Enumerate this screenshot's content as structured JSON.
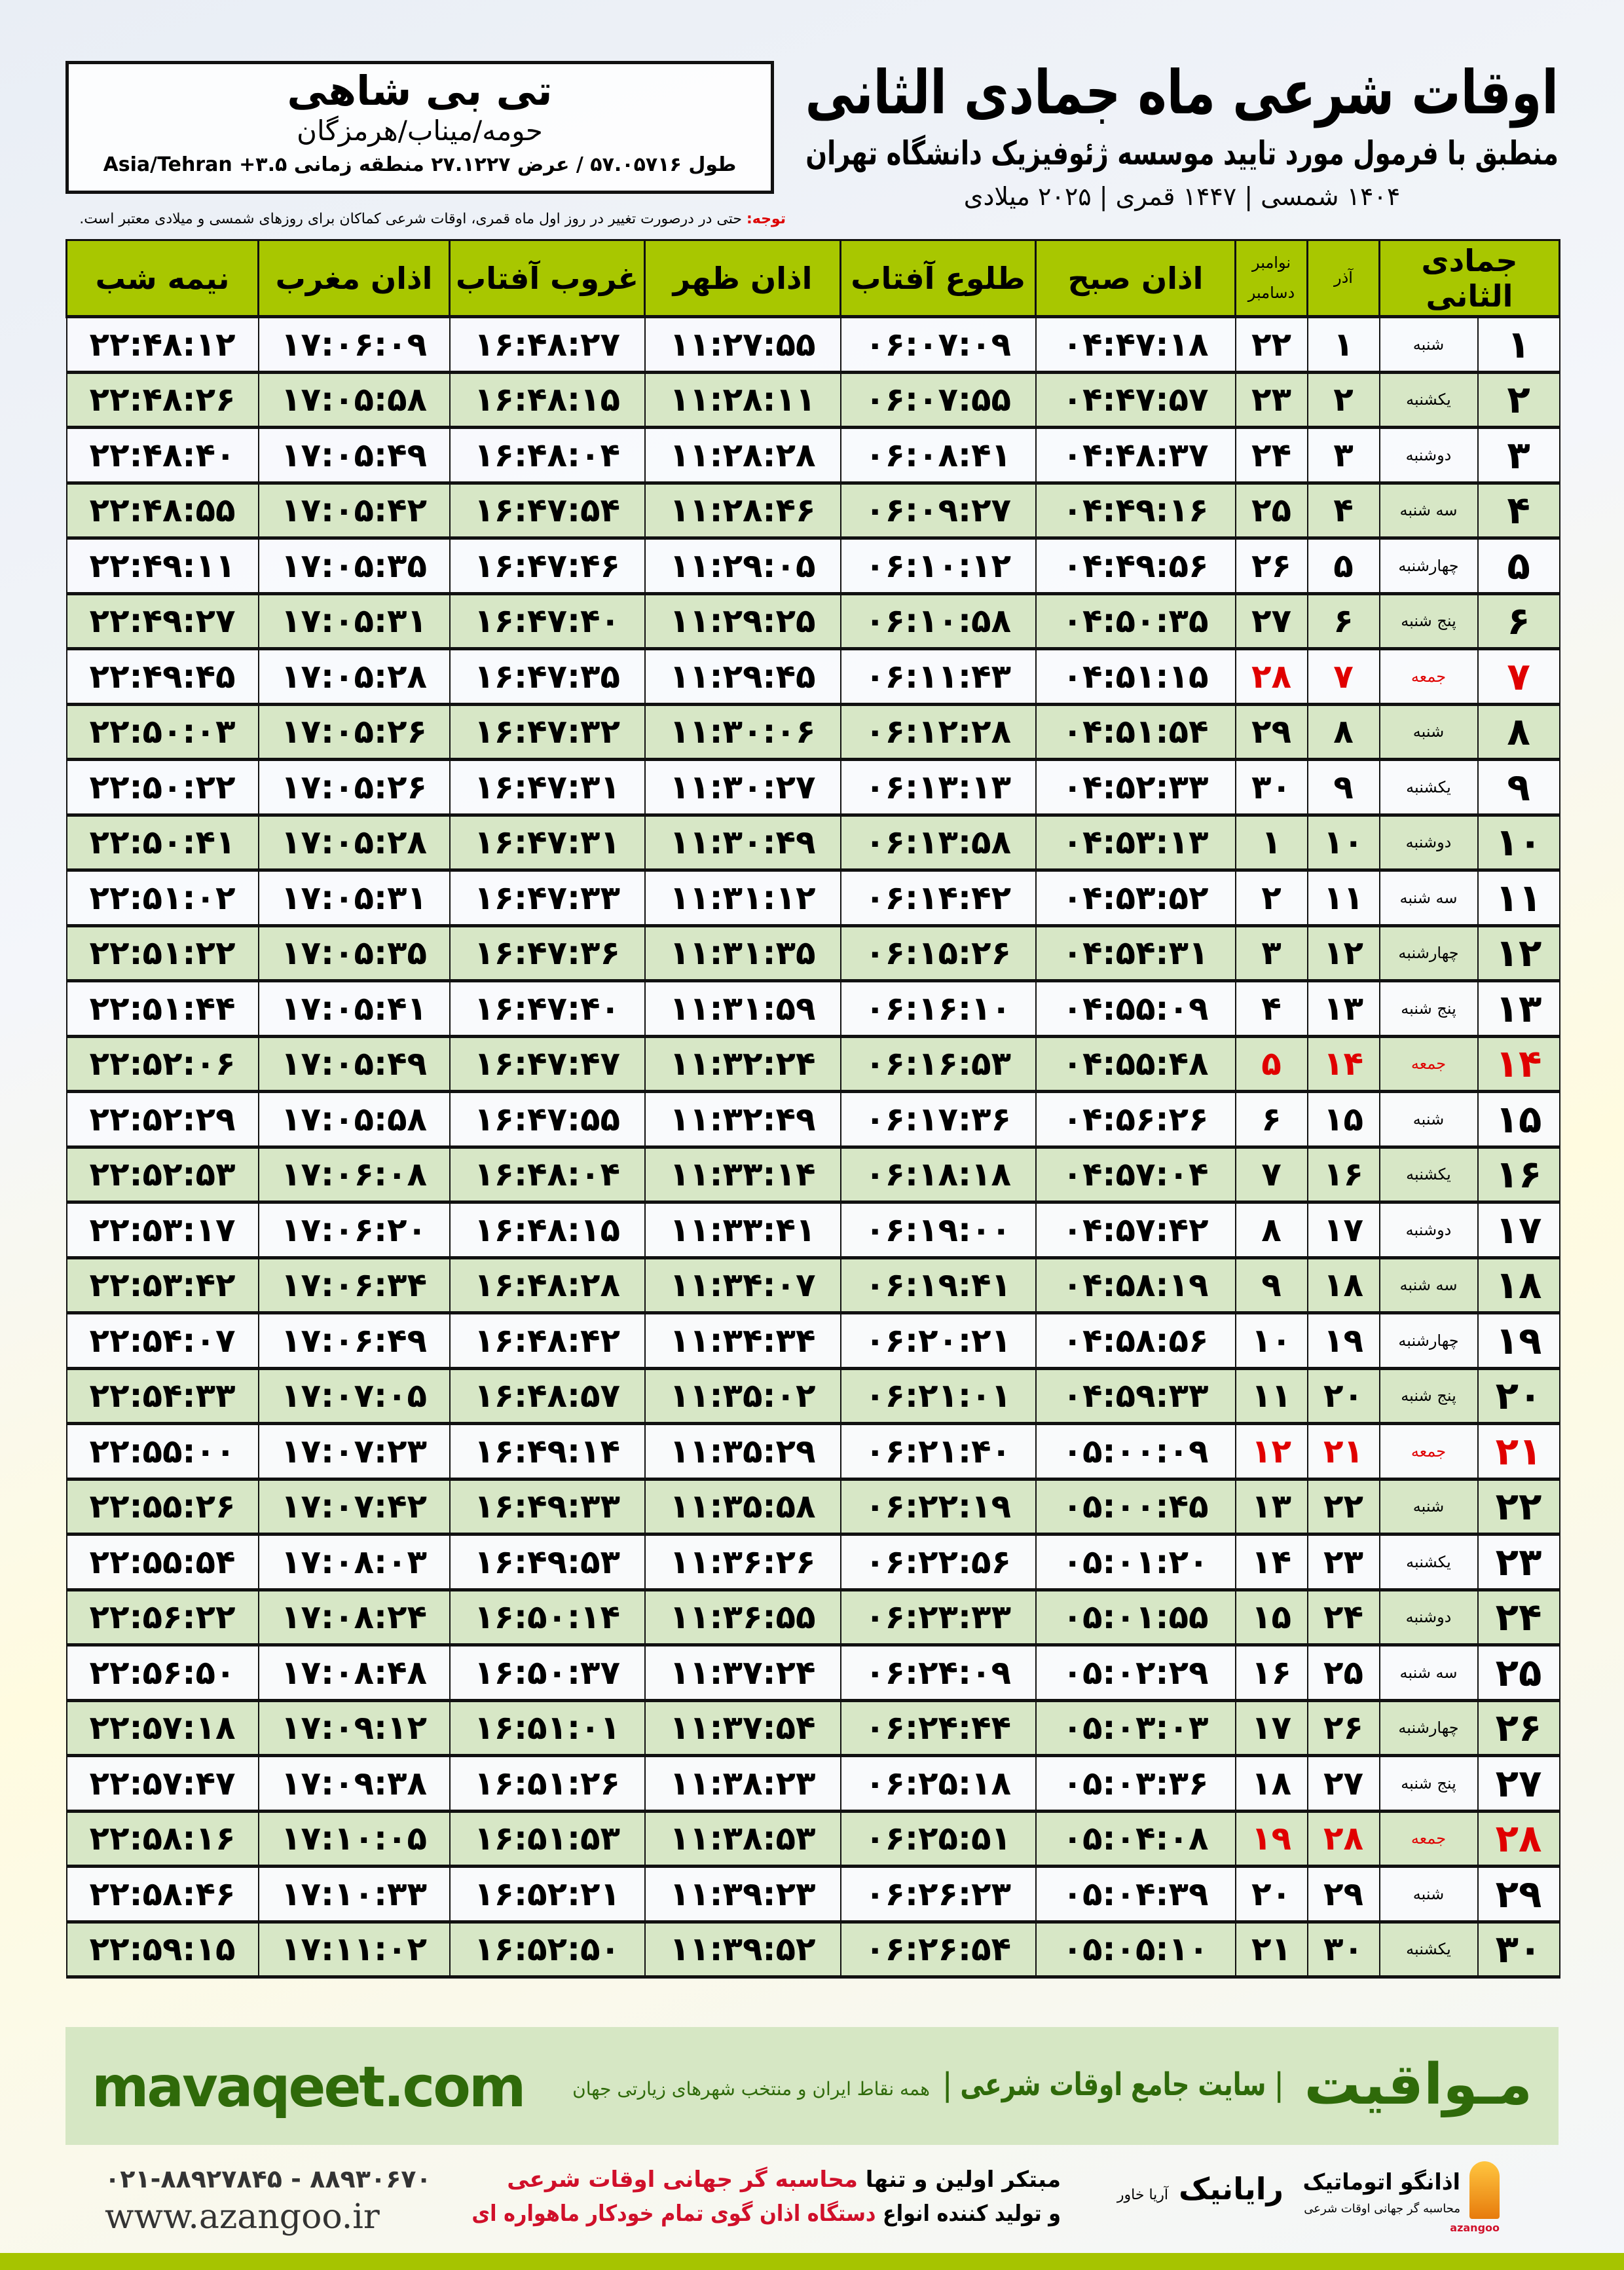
{
  "header": {
    "title": "اوقات شرعی ماه جمادی الثانی",
    "subtitle": "منطبق با فرمول مورد تایید موسسه ژئوفیزیک دانشگاه تهران",
    "dates": "۱۴۰۴ شمسی | ۱۴۴۷ قمری | ۲۰۲۵ میلادی"
  },
  "location": {
    "name": "تی بی شاهی",
    "region": "حومه/میناب/هرمزگان",
    "coords": "طول ۵۷.۰۵۷۱۶ / عرض ۲۷.۱۲۲۷ منطقه زمانی ۳.۵+ Asia/Tehran"
  },
  "note": {
    "label": "توجه:",
    "text": " حتی در درصورت تغییر در روز اول ماه قمری، اوقات شرعی کماکان برای روزهای شمسی و میلادی معتبر است."
  },
  "colors": {
    "header_green": "#a8c700",
    "row_green": "#d7e7c6",
    "friday_red": "#e00000",
    "brand_green": "#2f6a0a"
  },
  "table": {
    "headers": {
      "hijri": "جمادی الثانی",
      "azar": "آذر",
      "gregorian": "نوامبر دسامبر",
      "fajr": "اذان صبح",
      "sunrise": "طلوع آفتاب",
      "dhuhr": "اذان ظهر",
      "sunset": "غروب آفتاب",
      "maghrib": "اذان مغرب",
      "midnight": "نیمه شب"
    },
    "rows": [
      [
        "۱",
        "شنبه",
        "۱",
        "۲۲",
        "۰۴:۴۷:۱۸",
        "۰۶:۰۷:۰۹",
        "۱۱:۲۷:۵۵",
        "۱۶:۴۸:۲۷",
        "۱۷:۰۶:۰۹",
        "۲۲:۴۸:۱۲"
      ],
      [
        "۲",
        "یکشنبه",
        "۲",
        "۲۳",
        "۰۴:۴۷:۵۷",
        "۰۶:۰۷:۵۵",
        "۱۱:۲۸:۱۱",
        "۱۶:۴۸:۱۵",
        "۱۷:۰۵:۵۸",
        "۲۲:۴۸:۲۶"
      ],
      [
        "۳",
        "دوشنبه",
        "۳",
        "۲۴",
        "۰۴:۴۸:۳۷",
        "۰۶:۰۸:۴۱",
        "۱۱:۲۸:۲۸",
        "۱۶:۴۸:۰۴",
        "۱۷:۰۵:۴۹",
        "۲۲:۴۸:۴۰"
      ],
      [
        "۴",
        "سه شنبه",
        "۴",
        "۲۵",
        "۰۴:۴۹:۱۶",
        "۰۶:۰۹:۲۷",
        "۱۱:۲۸:۴۶",
        "۱۶:۴۷:۵۴",
        "۱۷:۰۵:۴۲",
        "۲۲:۴۸:۵۵"
      ],
      [
        "۵",
        "چهارشنبه",
        "۵",
        "۲۶",
        "۰۴:۴۹:۵۶",
        "۰۶:۱۰:۱۲",
        "۱۱:۲۹:۰۵",
        "۱۶:۴۷:۴۶",
        "۱۷:۰۵:۳۵",
        "۲۲:۴۹:۱۱"
      ],
      [
        "۶",
        "پنج شنبه",
        "۶",
        "۲۷",
        "۰۴:۵۰:۳۵",
        "۰۶:۱۰:۵۸",
        "۱۱:۲۹:۲۵",
        "۱۶:۴۷:۴۰",
        "۱۷:۰۵:۳۱",
        "۲۲:۴۹:۲۷"
      ],
      [
        "۷",
        "جمعه",
        "۷",
        "۲۸",
        "۰۴:۵۱:۱۵",
        "۰۶:۱۱:۴۳",
        "۱۱:۲۹:۴۵",
        "۱۶:۴۷:۳۵",
        "۱۷:۰۵:۲۸",
        "۲۲:۴۹:۴۵"
      ],
      [
        "۸",
        "شنبه",
        "۸",
        "۲۹",
        "۰۴:۵۱:۵۴",
        "۰۶:۱۲:۲۸",
        "۱۱:۳۰:۰۶",
        "۱۶:۴۷:۳۲",
        "۱۷:۰۵:۲۶",
        "۲۲:۵۰:۰۳"
      ],
      [
        "۹",
        "یکشنبه",
        "۹",
        "۳۰",
        "۰۴:۵۲:۳۳",
        "۰۶:۱۳:۱۳",
        "۱۱:۳۰:۲۷",
        "۱۶:۴۷:۳۱",
        "۱۷:۰۵:۲۶",
        "۲۲:۵۰:۲۲"
      ],
      [
        "۱۰",
        "دوشنبه",
        "۱۰",
        "۱",
        "۰۴:۵۳:۱۳",
        "۰۶:۱۳:۵۸",
        "۱۱:۳۰:۴۹",
        "۱۶:۴۷:۳۱",
        "۱۷:۰۵:۲۸",
        "۲۲:۵۰:۴۱"
      ],
      [
        "۱۱",
        "سه شنبه",
        "۱۱",
        "۲",
        "۰۴:۵۳:۵۲",
        "۰۶:۱۴:۴۲",
        "۱۱:۳۱:۱۲",
        "۱۶:۴۷:۳۳",
        "۱۷:۰۵:۳۱",
        "۲۲:۵۱:۰۲"
      ],
      [
        "۱۲",
        "چهارشنبه",
        "۱۲",
        "۳",
        "۰۴:۵۴:۳۱",
        "۰۶:۱۵:۲۶",
        "۱۱:۳۱:۳۵",
        "۱۶:۴۷:۳۶",
        "۱۷:۰۵:۳۵",
        "۲۲:۵۱:۲۲"
      ],
      [
        "۱۳",
        "پنج شنبه",
        "۱۳",
        "۴",
        "۰۴:۵۵:۰۹",
        "۰۶:۱۶:۱۰",
        "۱۱:۳۱:۵۹",
        "۱۶:۴۷:۴۰",
        "۱۷:۰۵:۴۱",
        "۲۲:۵۱:۴۴"
      ],
      [
        "۱۴",
        "جمعه",
        "۱۴",
        "۵",
        "۰۴:۵۵:۴۸",
        "۰۶:۱۶:۵۳",
        "۱۱:۳۲:۲۴",
        "۱۶:۴۷:۴۷",
        "۱۷:۰۵:۴۹",
        "۲۲:۵۲:۰۶"
      ],
      [
        "۱۵",
        "شنبه",
        "۱۵",
        "۶",
        "۰۴:۵۶:۲۶",
        "۰۶:۱۷:۳۶",
        "۱۱:۳۲:۴۹",
        "۱۶:۴۷:۵۵",
        "۱۷:۰۵:۵۸",
        "۲۲:۵۲:۲۹"
      ],
      [
        "۱۶",
        "یکشنبه",
        "۱۶",
        "۷",
        "۰۴:۵۷:۰۴",
        "۰۶:۱۸:۱۸",
        "۱۱:۳۳:۱۴",
        "۱۶:۴۸:۰۴",
        "۱۷:۰۶:۰۸",
        "۲۲:۵۲:۵۳"
      ],
      [
        "۱۷",
        "دوشنبه",
        "۱۷",
        "۸",
        "۰۴:۵۷:۴۲",
        "۰۶:۱۹:۰۰",
        "۱۱:۳۳:۴۱",
        "۱۶:۴۸:۱۵",
        "۱۷:۰۶:۲۰",
        "۲۲:۵۳:۱۷"
      ],
      [
        "۱۸",
        "سه شنبه",
        "۱۸",
        "۹",
        "۰۴:۵۸:۱۹",
        "۰۶:۱۹:۴۱",
        "۱۱:۳۴:۰۷",
        "۱۶:۴۸:۲۸",
        "۱۷:۰۶:۳۴",
        "۲۲:۵۳:۴۲"
      ],
      [
        "۱۹",
        "چهارشنبه",
        "۱۹",
        "۱۰",
        "۰۴:۵۸:۵۶",
        "۰۶:۲۰:۲۱",
        "۱۱:۳۴:۳۴",
        "۱۶:۴۸:۴۲",
        "۱۷:۰۶:۴۹",
        "۲۲:۵۴:۰۷"
      ],
      [
        "۲۰",
        "پنج شنبه",
        "۲۰",
        "۱۱",
        "۰۴:۵۹:۳۳",
        "۰۶:۲۱:۰۱",
        "۱۱:۳۵:۰۲",
        "۱۶:۴۸:۵۷",
        "۱۷:۰۷:۰۵",
        "۲۲:۵۴:۳۳"
      ],
      [
        "۲۱",
        "جمعه",
        "۲۱",
        "۱۲",
        "۰۵:۰۰:۰۹",
        "۰۶:۲۱:۴۰",
        "۱۱:۳۵:۲۹",
        "۱۶:۴۹:۱۴",
        "۱۷:۰۷:۲۳",
        "۲۲:۵۵:۰۰"
      ],
      [
        "۲۲",
        "شنبه",
        "۲۲",
        "۱۳",
        "۰۵:۰۰:۴۵",
        "۰۶:۲۲:۱۹",
        "۱۱:۳۵:۵۸",
        "۱۶:۴۹:۳۳",
        "۱۷:۰۷:۴۲",
        "۲۲:۵۵:۲۶"
      ],
      [
        "۲۳",
        "یکشنبه",
        "۲۳",
        "۱۴",
        "۰۵:۰۱:۲۰",
        "۰۶:۲۲:۵۶",
        "۱۱:۳۶:۲۶",
        "۱۶:۴۹:۵۳",
        "۱۷:۰۸:۰۳",
        "۲۲:۵۵:۵۴"
      ],
      [
        "۲۴",
        "دوشنبه",
        "۲۴",
        "۱۵",
        "۰۵:۰۱:۵۵",
        "۰۶:۲۳:۳۳",
        "۱۱:۳۶:۵۵",
        "۱۶:۵۰:۱۴",
        "۱۷:۰۸:۲۴",
        "۲۲:۵۶:۲۲"
      ],
      [
        "۲۵",
        "سه شنبه",
        "۲۵",
        "۱۶",
        "۰۵:۰۲:۲۹",
        "۰۶:۲۴:۰۹",
        "۱۱:۳۷:۲۴",
        "۱۶:۵۰:۳۷",
        "۱۷:۰۸:۴۸",
        "۲۲:۵۶:۵۰"
      ],
      [
        "۲۶",
        "چهارشنبه",
        "۲۶",
        "۱۷",
        "۰۵:۰۳:۰۳",
        "۰۶:۲۴:۴۴",
        "۱۱:۳۷:۵۴",
        "۱۶:۵۱:۰۱",
        "۱۷:۰۹:۱۲",
        "۲۲:۵۷:۱۸"
      ],
      [
        "۲۷",
        "پنج شنبه",
        "۲۷",
        "۱۸",
        "۰۵:۰۳:۳۶",
        "۰۶:۲۵:۱۸",
        "۱۱:۳۸:۲۳",
        "۱۶:۵۱:۲۶",
        "۱۷:۰۹:۳۸",
        "۲۲:۵۷:۴۷"
      ],
      [
        "۲۸",
        "جمعه",
        "۲۸",
        "۱۹",
        "۰۵:۰۴:۰۸",
        "۰۶:۲۵:۵۱",
        "۱۱:۳۸:۵۳",
        "۱۶:۵۱:۵۳",
        "۱۷:۱۰:۰۵",
        "۲۲:۵۸:۱۶"
      ],
      [
        "۲۹",
        "شنبه",
        "۲۹",
        "۲۰",
        "۰۵:۰۴:۳۹",
        "۰۶:۲۶:۲۳",
        "۱۱:۳۹:۲۳",
        "۱۶:۵۲:۲۱",
        "۱۷:۱۰:۳۳",
        "۲۲:۵۸:۴۶"
      ],
      [
        "۳۰",
        "یکشنبه",
        "۳۰",
        "۲۱",
        "۰۵:۰۵:۱۰",
        "۰۶:۲۶:۵۴",
        "۱۱:۳۹:۵۲",
        "۱۶:۵۲:۵۰",
        "۱۷:۱۱:۰۲",
        "۲۲:۵۹:۱۵"
      ]
    ]
  },
  "banner": {
    "brand": "مـواقیت",
    "tagline": "| سایت جامع اوقات شرعی |",
    "tagline2": "همه نقاط ایران و منتخب شهرهای زیارتی جهان",
    "site": "mavaqeet.com"
  },
  "footer": {
    "phones": "۰۲۱-۸۸۹۲۷۸۴۵ - ۸۸۹۳۰۶۷۰",
    "website": "www.azangoo.ir",
    "promo1_a": "مبتکر اولین و تنها ",
    "promo1_b": "محاسبه گر جهانی اوقات شرعی",
    "promo2_a": "و تولید کننده انواع ",
    "promo2_b": "دستگاه اذان گوی تمام خودکار ماهواره ای",
    "logo_rayanik": "رایانیک",
    "logo_rayanik_sub": "آریا خاور",
    "logo_azangoo": "اذانگو اتوماتیک",
    "logo_azangoo_sub": "محاسبه گر جهانی اوقات شرعی",
    "logo_azangoo_en": "azangoo"
  }
}
